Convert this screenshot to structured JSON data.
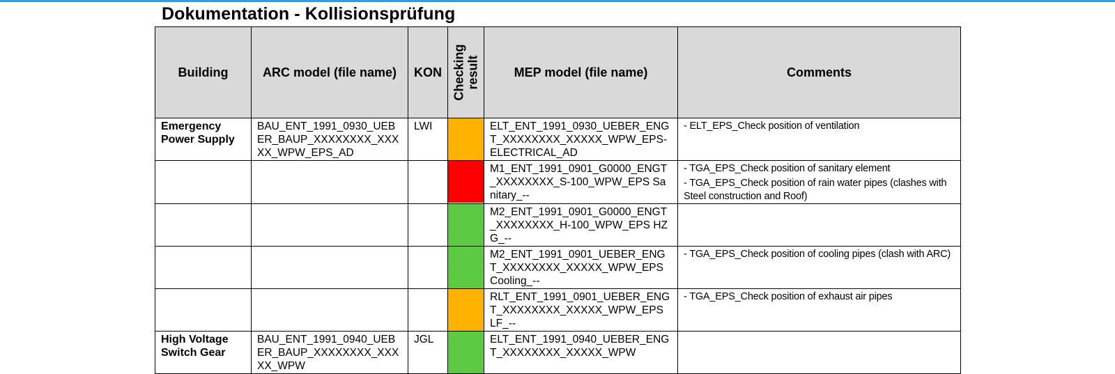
{
  "doc": {
    "title": "Dokumentation - Kollisionsprüfung"
  },
  "headers": {
    "building": "Building",
    "arc": "ARC model (file name)",
    "kon": "KON",
    "checking_line1": "Checking",
    "checking_line2": "result",
    "mep": "MEP model (file name)",
    "comments": "Comments"
  },
  "colors": {
    "orange": "#ffb300",
    "red": "#ff0000",
    "green": "#5cca43",
    "header_bg": "#d9d9d9",
    "topbar": "#2a9ee6"
  },
  "rows": [
    {
      "building": "Emergency Power Supply",
      "arc": "BAU_ENT_1991_0930_UEBER_BAUP_XXXXXXXX_XXXXX_WPW_EPS_AD",
      "kon": "LWI",
      "result": "orange",
      "mep": "ELT_ENT_1991_0930_UEBER_ENGT_XXXXXXXX_XXXXX_WPW_EPS-ELECTRICAL_AD",
      "comment1": "- ELT_EPS_Check position of ventilation",
      "comment2": ""
    },
    {
      "building": "",
      "arc": "",
      "kon": "",
      "result": "red",
      "mep": "M1_ENT_1991_0901_G0000_ENGT_XXXXXXXX_S-100_WPW_EPS Sanitary_--",
      "comment1": "- TGA_EPS_Check position of sanitary element",
      "comment2": "- TGA_EPS_Check position of rain water pipes (clashes with Steel construction and Roof)"
    },
    {
      "building": "",
      "arc": "",
      "kon": "",
      "result": "green",
      "mep": "M2_ENT_1991_0901_G0000_ENGT_XXXXXXXX_H-100_WPW_EPS HZG_--",
      "comment1": "",
      "comment2": ""
    },
    {
      "building": "",
      "arc": "",
      "kon": "",
      "result": "green",
      "mep": "M2_ENT_1991_0901_UEBER_ENGT_XXXXXXXX_XXXXX_WPW_EPS Cooling_--",
      "comment1": "- TGA_EPS_Check position of cooling pipes (clash with ARC)",
      "comment2": ""
    },
    {
      "building": "",
      "arc": "",
      "kon": "",
      "result": "orange",
      "mep": "RLT_ENT_1991_0901_UEBER_ENGT_XXXXXXXX_XXXXX_WPW_EPS LF_--",
      "comment1": "- TGA_EPS_Check position of exhaust air pipes",
      "comment2": ""
    },
    {
      "building": "High Voltage Switch Gear",
      "arc": "BAU_ENT_1991_0940_UEBER_BAUP_XXXXXXXX_XXXXX_WPW",
      "kon": "JGL",
      "result": "green",
      "mep": "ELT_ENT_1991_0940_UEBER_ENGT_XXXXXXXX_XXXXX_WPW",
      "comment1": "",
      "comment2": ""
    }
  ]
}
